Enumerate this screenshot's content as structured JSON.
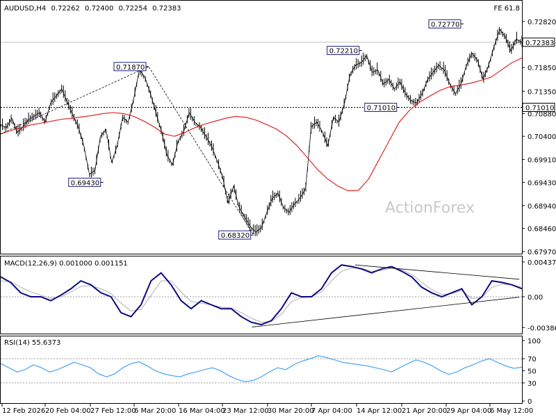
{
  "chart_data": {
    "type": "line",
    "symbol": "AUDUSD,H4",
    "ohlc": {
      "open": "0.72262",
      "high": "0.72400",
      "low": "0.72254",
      "close": "0.72383"
    },
    "fib_label": "FE 61.8",
    "watermark": "ActionForex",
    "price_axis": {
      "range": [
        0.6797,
        0.7298
      ],
      "ticks": [
        "0.72820",
        "0.71850",
        "0.71350",
        "0.70880",
        "0.70400",
        "0.69910",
        "0.69430",
        "0.68940",
        "0.68460",
        "0.67970"
      ],
      "current": "0.72383",
      "hline": "0.71010"
    },
    "x_labels": [
      "12 Feb 2026",
      "20 Feb 04:00",
      "27 Feb 12:00",
      "6 Mar 20:00",
      "16 Mar 04:00",
      "23 Mar 12:00",
      "30 Mar 20:00",
      "7 Apr 04:00",
      "14 Apr 12:00",
      "21 Apr 20:00",
      "29 Apr 04:00",
      "6 May 12:00"
    ],
    "price_series": [
      0.7065,
      0.7058,
      0.7078,
      0.7048,
      0.706,
      0.7075,
      0.7082,
      0.709,
      0.707,
      0.711,
      0.7125,
      0.714,
      0.7112,
      0.7085,
      0.706,
      0.702,
      0.696,
      0.6968,
      0.704,
      0.7055,
      0.6985,
      0.702,
      0.708,
      0.707,
      0.712,
      0.718,
      0.7165,
      0.713,
      0.709,
      0.705,
      0.7,
      0.698,
      0.703,
      0.705,
      0.709,
      0.707,
      0.706,
      0.704,
      0.702,
      0.699,
      0.6955,
      0.69,
      0.6935,
      0.689,
      0.687,
      0.685,
      0.6838,
      0.6847,
      0.688,
      0.691,
      0.692,
      0.689,
      0.688,
      0.6898,
      0.691,
      0.693,
      0.706,
      0.707,
      0.705,
      0.702,
      0.708,
      0.707,
      0.711,
      0.717,
      0.719,
      0.7195,
      0.721,
      0.7175,
      0.718,
      0.715,
      0.716,
      0.714,
      0.7155,
      0.713,
      0.7115,
      0.711,
      0.713,
      0.716,
      0.7175,
      0.719,
      0.718,
      0.715,
      0.713,
      0.715,
      0.719,
      0.7215,
      0.72,
      0.716,
      0.719,
      0.723,
      0.7265,
      0.725,
      0.722,
      0.7245,
      0.7238
    ],
    "ma_series": [
      0.7045,
      0.7052,
      0.7058,
      0.7064,
      0.7068,
      0.7072,
      0.7076,
      0.7078,
      0.7081,
      0.7084,
      0.7088,
      0.709,
      0.7088,
      0.7082,
      0.7072,
      0.706,
      0.7045,
      0.704,
      0.7048,
      0.7058,
      0.7066,
      0.7072,
      0.7078,
      0.7082,
      0.708,
      0.7074,
      0.7065,
      0.7055,
      0.704,
      0.702,
      0.6995,
      0.697,
      0.695,
      0.6935,
      0.6925,
      0.6926,
      0.695,
      0.699,
      0.703,
      0.707,
      0.7095,
      0.7112,
      0.7125,
      0.7137,
      0.7145,
      0.7148,
      0.7152,
      0.7158,
      0.7165,
      0.718,
      0.7195,
      0.7205
    ],
    "annotations": [
      {
        "text": "0.71870",
        "x": 0.284,
        "y": 0.7187
      },
      {
        "text": "0.69430",
        "x": 0.197,
        "y": 0.6943
      },
      {
        "text": "0.68320",
        "x": 0.485,
        "y": 0.6832
      },
      {
        "text": "0.72210",
        "x": 0.693,
        "y": 0.7221
      },
      {
        "text": "0.71010",
        "x": 0.765,
        "y": 0.7101
      },
      {
        "text": "0.72770",
        "x": 0.888,
        "y": 0.7277
      }
    ],
    "macd": {
      "label": "MACD(12,26,9) 0.001000 0.001151",
      "range": [
        -0.00445,
        0.0048
      ],
      "ticks": [
        "0.00437",
        "0.00",
        "-0.003861"
      ],
      "main": [
        0.0025,
        0.0018,
        0.0005,
        0.0,
        0.0,
        -0.0005,
        0.0002,
        0.001,
        0.002,
        0.0015,
        0.0005,
        0.0,
        -0.002,
        -0.0025,
        -0.001,
        0.002,
        0.003,
        0.0015,
        -0.0005,
        -0.0015,
        -0.0005,
        -0.001,
        -0.0015,
        -0.0015,
        -0.0025,
        -0.0032,
        -0.0035,
        -0.003,
        -0.0015,
        0.0005,
        0.0,
        0.0,
        0.001,
        0.003,
        0.004,
        0.0038,
        0.0035,
        0.003,
        0.0035,
        0.0038,
        0.0032,
        0.0025,
        0.0012,
        0.0005,
        0.0,
        0.0005,
        0.001,
        -0.001,
        0.0,
        0.002,
        0.0018,
        0.0015,
        0.001
      ],
      "signal": [
        0.002,
        0.0019,
        0.0012,
        0.0006,
        0.0002,
        -0.0002,
        0.0,
        0.0006,
        0.0013,
        0.0014,
        0.001,
        0.0004,
        -0.0008,
        -0.0018,
        -0.0016,
        0.0002,
        0.002,
        0.002,
        0.0006,
        -0.0006,
        -0.0008,
        -0.001,
        -0.0013,
        -0.0014,
        -0.002,
        -0.0027,
        -0.0032,
        -0.0031,
        -0.0022,
        -0.0006,
        -0.0001,
        0.0,
        0.0006,
        0.002,
        0.0032,
        0.0036,
        0.0036,
        0.0032,
        0.0033,
        0.0036,
        0.0034,
        0.0028,
        0.0018,
        0.0009,
        0.0003,
        0.0004,
        0.0008,
        -0.0002,
        -0.0001,
        0.0012,
        0.0016,
        0.0015,
        0.0012
      ],
      "trendlines": [
        {
          "x1": 0.482,
          "y1": -0.0038,
          "x2": 0.995,
          "y2": -5e-05
        },
        {
          "x1": 0.68,
          "y1": 0.004,
          "x2": 0.995,
          "y2": 0.0022
        }
      ]
    },
    "rsi": {
      "label": "RSI(14) 55.6373",
      "range": [
        0,
        100
      ],
      "ticks": [
        "100",
        "70",
        "50",
        "30",
        "0"
      ],
      "levels": [
        70,
        30
      ],
      "values": [
        62,
        55,
        48,
        52,
        60,
        55,
        48,
        52,
        58,
        64,
        60,
        55,
        45,
        40,
        45,
        55,
        62,
        65,
        58,
        50,
        45,
        42,
        40,
        45,
        48,
        52,
        55,
        50,
        42,
        36,
        32,
        34,
        40,
        48,
        55,
        52,
        60,
        66,
        70,
        75,
        72,
        68,
        64,
        62,
        60,
        58,
        55,
        52,
        48,
        55,
        62,
        68,
        64,
        58,
        50,
        44,
        48,
        55,
        60,
        66,
        70,
        64,
        58,
        54,
        56
      ]
    }
  }
}
